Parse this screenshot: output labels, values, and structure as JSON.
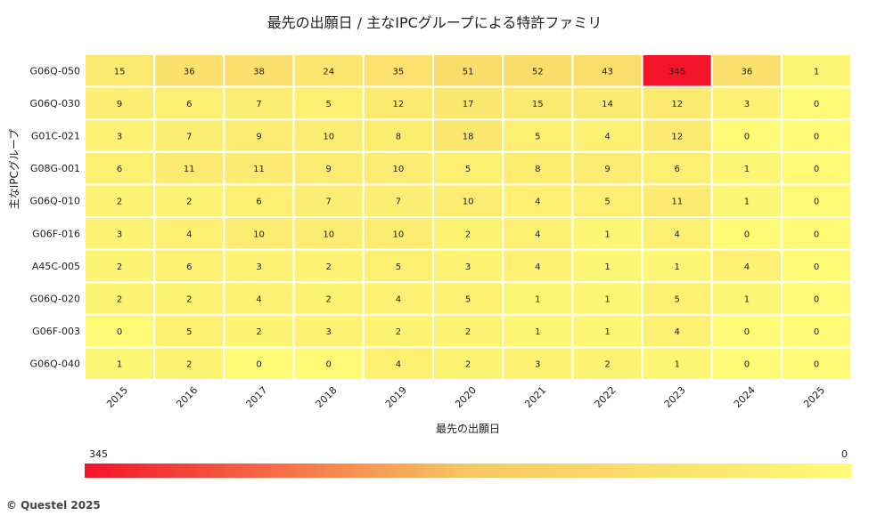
{
  "chart_data": {
    "type": "heatmap",
    "title": "最先の出願日 / 主なIPCグループによる特許ファミリ",
    "xlabel": "最先の出願日",
    "ylabel": "主なIPCグループ",
    "x": [
      "2015",
      "2016",
      "2017",
      "2018",
      "2019",
      "2020",
      "2021",
      "2022",
      "2023",
      "2024",
      "2025"
    ],
    "y": [
      "G06Q-050",
      "G06Q-030",
      "G01C-021",
      "G08G-001",
      "G06Q-010",
      "G06F-016",
      "A45C-005",
      "G06Q-020",
      "G06F-003",
      "G06Q-040"
    ],
    "values": [
      [
        15,
        36,
        38,
        24,
        35,
        51,
        52,
        43,
        345,
        36,
        1
      ],
      [
        9,
        6,
        7,
        5,
        12,
        17,
        15,
        14,
        12,
        3,
        0
      ],
      [
        3,
        7,
        9,
        10,
        8,
        18,
        5,
        4,
        12,
        0,
        0
      ],
      [
        6,
        11,
        11,
        9,
        10,
        5,
        8,
        9,
        6,
        1,
        0
      ],
      [
        2,
        2,
        6,
        7,
        7,
        10,
        4,
        5,
        11,
        1,
        0
      ],
      [
        3,
        4,
        10,
        10,
        10,
        2,
        4,
        1,
        4,
        0,
        0
      ],
      [
        2,
        6,
        3,
        2,
        5,
        3,
        4,
        1,
        1,
        4,
        0
      ],
      [
        2,
        2,
        4,
        2,
        4,
        5,
        1,
        1,
        5,
        1,
        0
      ],
      [
        0,
        5,
        2,
        3,
        2,
        2,
        1,
        1,
        4,
        0,
        0
      ],
      [
        1,
        2,
        0,
        0,
        4,
        2,
        3,
        2,
        1,
        0,
        0
      ]
    ],
    "colorscale": {
      "min": 0,
      "max": 345,
      "min_label": "0",
      "max_label": "345",
      "low_color": "#fefa76",
      "mid_color": "#f7c663",
      "high_color": "#f3142a"
    }
  },
  "footer": "© Questel 2025"
}
